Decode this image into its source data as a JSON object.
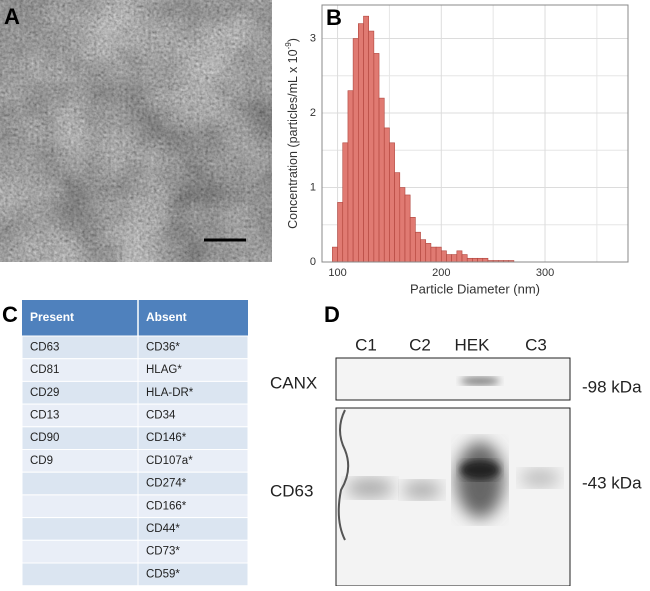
{
  "panel_labels": [
    "A",
    "B",
    "C",
    "D"
  ],
  "chart_data": {
    "type": "histogram",
    "x_label": "Particle Diameter  (nm)",
    "y_label": "Concentration (particles/mL x 10",
    "y_label_exponent": "-9",
    "y_label_end": ")",
    "bins": [
      95,
      100,
      105,
      110,
      115,
      120,
      125,
      130,
      135,
      140,
      145,
      150,
      155,
      160,
      165,
      170,
      175,
      180,
      185,
      190,
      195,
      200,
      205,
      210,
      215,
      220,
      225,
      230,
      235,
      240,
      245,
      250,
      255,
      260,
      265,
      270
    ],
    "counts": [
      0.2,
      0.8,
      1.6,
      2.3,
      3.0,
      3.2,
      3.3,
      3.1,
      2.8,
      2.2,
      1.8,
      1.6,
      1.2,
      1.0,
      0.9,
      0.6,
      0.4,
      0.3,
      0.25,
      0.2,
      0.2,
      0.15,
      0.1,
      0.1,
      0.15,
      0.1,
      0.05,
      0.05,
      0.05,
      0.05,
      0.02,
      0.02,
      0.02,
      0.02,
      0.02
    ],
    "color": "#e07a72",
    "xlim": [
      85,
      380
    ],
    "ylim": [
      0,
      3.45
    ],
    "xticks": [
      100,
      200,
      300
    ],
    "yticks": [
      0,
      1,
      2,
      3
    ],
    "minor_xticks": [
      150,
      250,
      350
    ],
    "minor_yticks": [
      0.5,
      1.5,
      2.5
    ],
    "grid": true
  },
  "table": {
    "header": [
      "Present",
      "Absent"
    ],
    "rows": [
      [
        "CD63",
        "CD36*"
      ],
      [
        "CD81",
        "HLAG*"
      ],
      [
        "CD29",
        "HLA-DR*"
      ],
      [
        "CD13",
        "CD34"
      ],
      [
        "CD90",
        "CD146*"
      ],
      [
        "CD9",
        "CD107a*"
      ],
      [
        null,
        "CD274*"
      ],
      [
        null,
        "CD166*"
      ],
      [
        null,
        "CD44*"
      ],
      [
        null,
        "CD73*"
      ],
      [
        null,
        "CD59*"
      ]
    ]
  },
  "blot": {
    "lanes": [
      "C1",
      "C2",
      "HEK",
      "C3"
    ],
    "rows": [
      "CANX",
      "CD63"
    ],
    "markers": [
      "-98 kDa",
      "-43 kDa"
    ]
  }
}
